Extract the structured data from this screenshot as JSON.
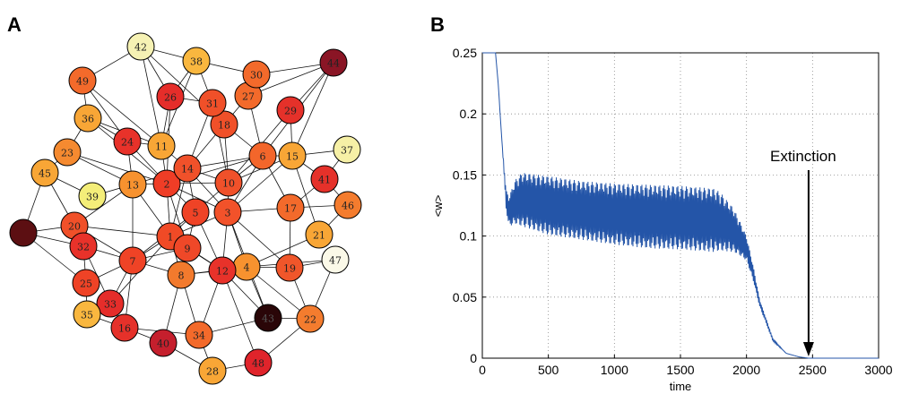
{
  "panels": {
    "a_label": "A",
    "b_label": "B"
  },
  "colors": {
    "series": "#2455a8",
    "node_stroke": "#000000",
    "edge": "#111111"
  },
  "chart_data": [
    {
      "type": "network",
      "nodes": [
        {
          "id": "1",
          "color": "#f04a26"
        },
        {
          "id": "2",
          "color": "#ef3d26"
        },
        {
          "id": "3",
          "color": "#f2522a"
        },
        {
          "id": "4",
          "color": "#f7922f"
        },
        {
          "id": "5",
          "color": "#ef4326"
        },
        {
          "id": "6",
          "color": "#f3662b"
        },
        {
          "id": "7",
          "color": "#ef4326"
        },
        {
          "id": "8",
          "color": "#f27a2d"
        },
        {
          "id": "9",
          "color": "#ef4828"
        },
        {
          "id": "10",
          "color": "#f0512a"
        },
        {
          "id": "11",
          "color": "#f8a636"
        },
        {
          "id": "12",
          "color": "#e8322a"
        },
        {
          "id": "13",
          "color": "#f7922f"
        },
        {
          "id": "14",
          "color": "#f0512a"
        },
        {
          "id": "15",
          "color": "#f8a636"
        },
        {
          "id": "16",
          "color": "#e5312a"
        },
        {
          "id": "17",
          "color": "#f36a2b"
        },
        {
          "id": "18",
          "color": "#f05029"
        },
        {
          "id": "19",
          "color": "#f0562a"
        },
        {
          "id": "20",
          "color": "#f05029"
        },
        {
          "id": "21",
          "color": "#f8a636"
        },
        {
          "id": "22",
          "color": "#f47c2e"
        },
        {
          "id": "23",
          "color": "#f58a30"
        },
        {
          "id": "24",
          "color": "#e8322a"
        },
        {
          "id": "25",
          "color": "#ef4326"
        },
        {
          "id": "26",
          "color": "#e52d2a"
        },
        {
          "id": "27",
          "color": "#f36a2b"
        },
        {
          "id": "28",
          "color": "#f8a636"
        },
        {
          "id": "29",
          "color": "#e5312a"
        },
        {
          "id": "30",
          "color": "#f36a2b"
        },
        {
          "id": "31",
          "color": "#f05029"
        },
        {
          "id": "32",
          "color": "#e8322a"
        },
        {
          "id": "33",
          "color": "#e52d2a"
        },
        {
          "id": "34",
          "color": "#f36a2b"
        },
        {
          "id": "35",
          "color": "#f9b73f"
        },
        {
          "id": "36",
          "color": "#f8a636"
        },
        {
          "id": "37",
          "color": "#f6f0a6"
        },
        {
          "id": "38",
          "color": "#f9b73f"
        },
        {
          "id": "39",
          "color": "#f4ee79"
        },
        {
          "id": "40",
          "color": "#c51f2d"
        },
        {
          "id": "41",
          "color": "#e5312a"
        },
        {
          "id": "42",
          "color": "#f6f2b4"
        },
        {
          "id": "43",
          "color": "#2a0608"
        },
        {
          "id": "44",
          "color": "#8a1525"
        },
        {
          "id": "45",
          "color": "#f8a636"
        },
        {
          "id": "46",
          "color": "#f47c2e"
        },
        {
          "id": "47",
          "color": "#fbf9e8"
        },
        {
          "id": "48",
          "color": "#e0242b"
        },
        {
          "id": "49",
          "color": "#f36a2b"
        },
        {
          "id": "",
          "color": "#5c0f12"
        }
      ]
    },
    {
      "type": "line",
      "title": "",
      "xlabel": "time",
      "ylabel": "<w>",
      "xlim": [
        0,
        3000
      ],
      "ylim": [
        0,
        0.25
      ],
      "xticks": [
        "0",
        "500",
        "1000",
        "1500",
        "2000",
        "2500",
        "3000"
      ],
      "yticks": [
        "0",
        "0.05",
        "0.1",
        "0.15",
        "0.2",
        "0.25"
      ],
      "grid": true,
      "annotation": {
        "text": "Extinction",
        "x": 2470,
        "y": 0.0
      },
      "series": [
        {
          "x": [
            0,
            100,
            120,
            150,
            180,
            200,
            250,
            300,
            500,
            750,
            1000,
            1250,
            1500,
            1750,
            1800,
            1900,
            1950,
            2000,
            2050,
            2100,
            2200,
            2300,
            2400,
            2470,
            3000
          ],
          "y": [
            0.25,
            0.25,
            0.225,
            0.175,
            0.13,
            0.12,
            0.128,
            0.13,
            0.125,
            0.121,
            0.118,
            0.116,
            0.115,
            0.113,
            0.112,
            0.105,
            0.098,
            0.09,
            0.07,
            0.045,
            0.015,
            0.004,
            0.001,
            0.0,
            0.0
          ],
          "oscillation": [
            0,
            0,
            0,
            0,
            0.008,
            0.012,
            0.018,
            0.022,
            0.024,
            0.024,
            0.025,
            0.026,
            0.026,
            0.026,
            0.024,
            0.018,
            0.014,
            0.01,
            0.006,
            0.003,
            0.001,
            0,
            0,
            0,
            0
          ]
        }
      ]
    }
  ]
}
